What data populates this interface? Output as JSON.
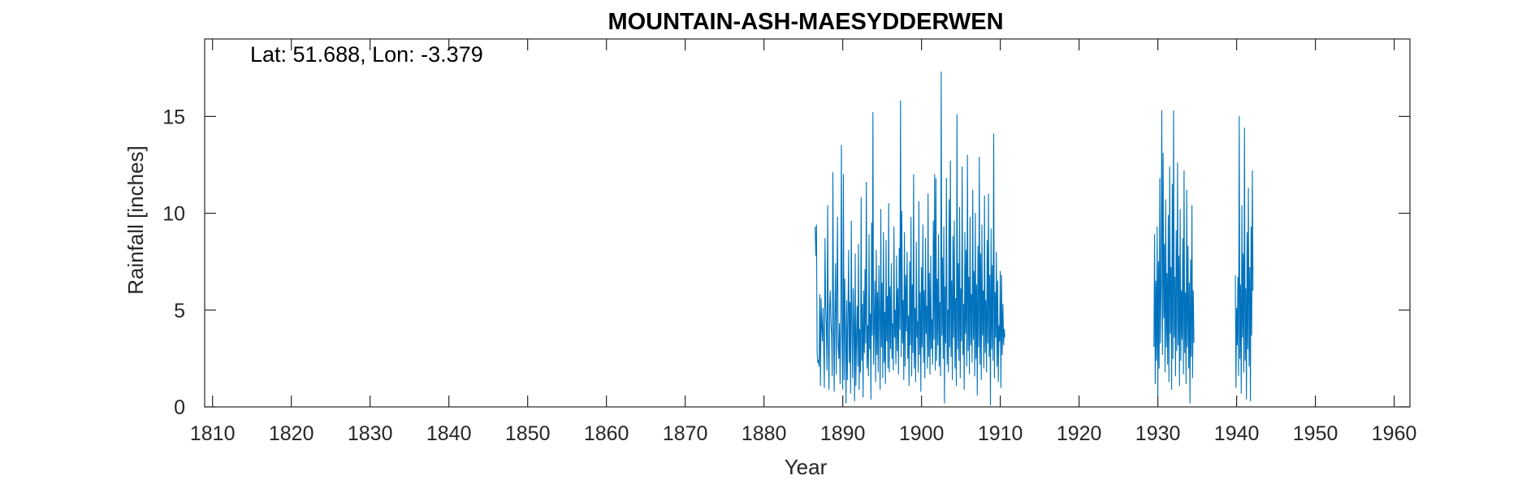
{
  "chart_data": {
    "type": "line",
    "title": "MOUNTAIN-ASH-MAESYDDERWEN",
    "annotation": "Lat: 51.688, Lon: -3.379",
    "xlabel": "Year",
    "ylabel": "Rainfall [inches]",
    "xlim": [
      1809,
      1962
    ],
    "ylim": [
      0,
      19
    ],
    "xticks": [
      1810,
      1820,
      1830,
      1840,
      1850,
      1860,
      1870,
      1880,
      1890,
      1900,
      1910,
      1920,
      1930,
      1940,
      1950,
      1960
    ],
    "yticks": [
      0,
      5,
      10,
      15
    ],
    "grid": false,
    "series": [
      {
        "color": "#0072BD",
        "x_start": 1886.5,
        "x_step": 0.08333,
        "segments": [
          {
            "start_index": 0,
            "values": [
              9.3,
              7.8,
              9.4,
              2.8,
              2.3,
              2.4,
              2.1,
              5.8,
              1.1,
              5.6,
              4.2,
              3.4,
              5.1,
              3.2,
              1.0,
              8.7,
              5.2,
              4.2,
              1.9,
              10.4,
              3.3,
              0.9,
              5.2,
              6.0,
              4.3,
              3.8,
              1.6,
              12.1,
              4.8,
              0.8,
              4.6,
              7.4,
              1.7,
              5.8,
              9.8,
              3.1,
              2.5,
              4.3,
              1.2,
              5.0,
              13.5,
              3.5,
              0.9,
              12.0,
              1.4,
              6.6,
              3.8,
              0.2,
              5.5,
              1.4,
              4.8,
              8.1,
              2.3,
              5.4,
              0.7,
              9.6,
              3.9,
              1.5,
              6.1,
              4.2,
              0.3,
              7.9,
              1.1,
              3.6,
              5.2,
              2.1,
              8.4,
              0.9,
              4.0,
              1.8,
              10.8,
              2.4,
              5.3,
              0.5,
              6.0,
              2.8,
              7.1,
              3.3,
              11.6,
              2.0,
              4.2,
              1.6,
              8.9,
              3.0,
              4.8,
              0.4,
              9.5,
              3.7,
              15.2,
              2.2,
              4.1,
              6.5,
              1.3,
              8.1,
              2.7,
              5.9,
              1.8,
              7.3,
              4.6,
              0.9,
              10.2,
              3.1,
              6.4,
              1.5,
              9.0,
              2.3,
              4.9,
              1.2,
              8.6,
              3.4,
              5.7,
              2.0,
              10.5,
              1.8,
              6.2,
              3.0,
              7.4,
              2.5,
              4.3,
              1.9,
              9.3,
              3.6,
              5.0,
              2.2,
              7.8,
              2.9,
              6.1,
              1.7,
              8.2,
              4.0,
              15.8,
              2.6,
              10.1,
              3.3,
              5.5,
              1.4,
              9.0,
              2.1,
              6.8,
              3.9,
              8.0,
              2.5,
              4.7,
              1.1,
              7.5,
              3.2,
              9.8,
              1.6,
              6.3,
              2.8,
              12.0,
              2.0,
              5.1,
              1.3,
              8.5,
              3.6,
              4.4,
              1.8,
              10.6,
              2.7,
              5.9,
              0.8,
              7.2,
              3.1,
              9.4,
              2.3,
              6.0,
              1.5,
              8.7,
              3.8,
              5.2,
              2.0,
              11.0,
              2.6,
              6.9,
              1.7,
              7.8,
              3.0,
              4.5,
              2.2,
              9.6,
              3.5,
              12.0,
              1.9,
              11.8,
              2.4,
              6.6,
              3.2,
              8.9,
              2.1,
              5.4,
              1.6,
              17.3,
              3.7,
              7.7,
              2.5,
              9.3,
              0.2,
              6.2,
              3.3,
              11.8,
              2.2,
              5.0,
              1.8,
              10.7,
              3.1,
              12.7,
              2.6,
              6.5,
              1.4,
              8.8,
              3.6,
              9.6,
              2.0,
              5.6,
              1.1,
              15.1,
              3.0,
              7.4,
              2.4,
              10.3,
              1.5,
              6.1,
              3.4,
              12.4,
              2.7,
              5.3,
              0.9,
              9.0,
              3.8,
              8.1,
              2.1,
              13.0,
              2.9,
              6.7,
              1.7,
              9.8,
              3.2,
              5.8,
              2.3,
              11.2,
              3.5,
              7.0,
              1.6,
              10.0,
              2.5,
              6.3,
              0.6,
              8.3,
              3.1,
              12.9,
              2.2,
              7.9,
              1.4,
              9.4,
              3.7,
              6.0,
              2.0,
              10.9,
              2.8,
              5.5,
              1.8,
              8.6,
              3.3,
              11.0,
              2.6,
              6.8,
              0.1,
              9.2,
              3.0,
              7.3,
              2.4,
              14.1,
              1.5,
              5.9,
              3.6,
              8.0,
              2.1,
              6.5,
              1.3,
              4.2,
              3.4,
              7.0,
              1.0,
              6.8,
              2.7,
              5.3,
              3.2,
              4.0,
              3.6
            ]
          },
          {
            "start_index": 516,
            "values": [
              3.1,
              8.9,
              1.2,
              6.5,
              2.4,
              9.3,
              0.6,
              7.5,
              2.0,
              11.8,
              3.3,
              6.2,
              15.3,
              2.7,
              13.1,
              4.6,
              8.4,
              1.8,
              10.7,
              3.1,
              6.9,
              2.2,
              9.9,
              1.3,
              12.4,
              3.8,
              7.2,
              0.9,
              11.5,
              2.5,
              15.3,
              3.6,
              6.7,
              1.6,
              9.1,
              2.9,
              12.6,
              3.2,
              7.8,
              1.1,
              10.2,
              2.4,
              6.0,
              3.5,
              8.7,
              1.7,
              12.2,
              2.8,
              5.9,
              1.2,
              11.2,
              3.1,
              8.3,
              2.0,
              6.4,
              0.2,
              7.6,
              2.6,
              10.4,
              1.5,
              6.0,
              3.3
            ]
          },
          {
            "start_index": 640,
            "values": [
              6.8,
              1.0,
              5.1,
              3.2,
              6.7,
              1.6,
              15.0,
              2.5,
              6.3,
              0.7,
              10.4,
              3.6,
              7.9,
              1.8,
              14.4,
              2.4,
              6.1,
              0.4,
              9.0,
              3.0,
              11.3,
              2.1,
              7.2,
              0.3,
              9.3,
              3.7,
              12.2,
              6.0
            ]
          }
        ]
      }
    ]
  }
}
